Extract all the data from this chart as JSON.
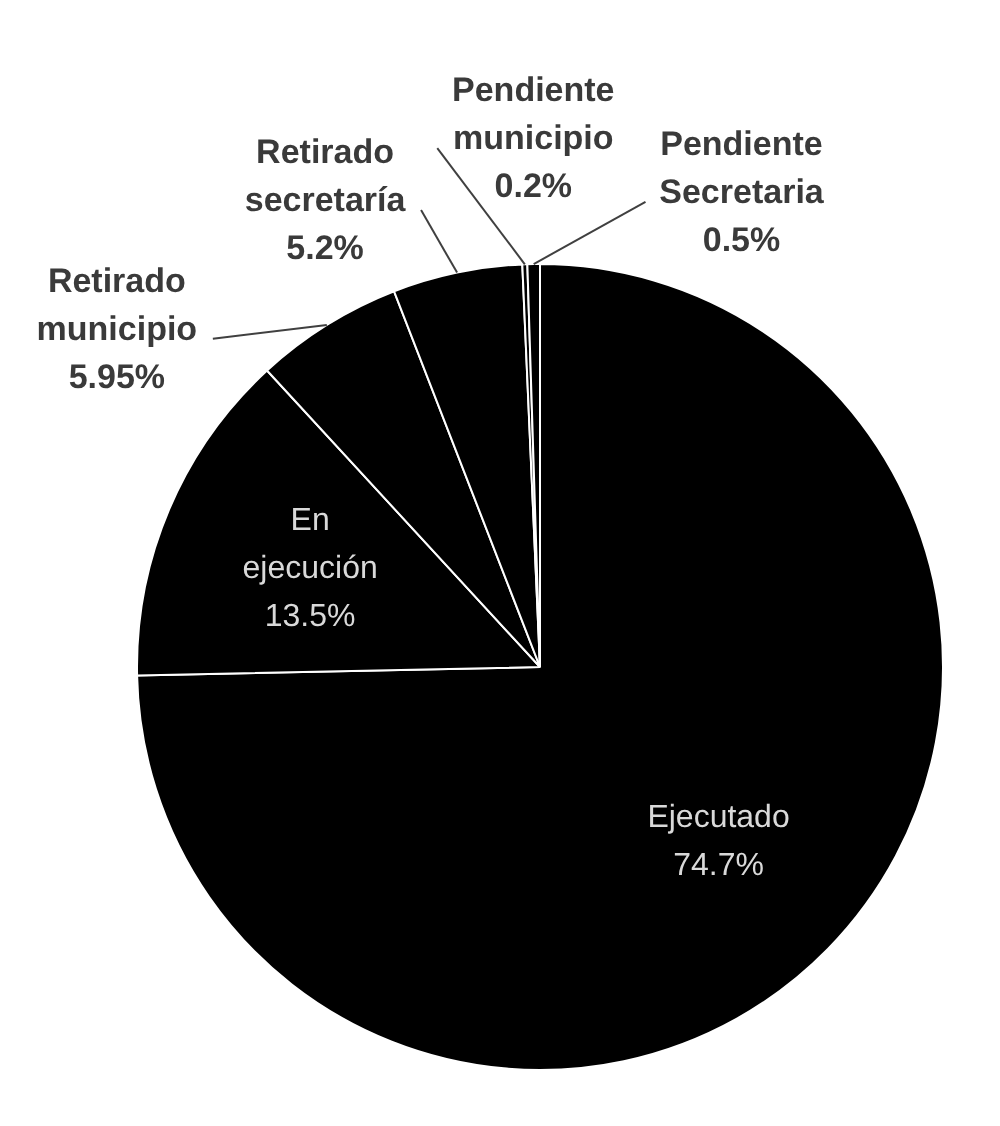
{
  "chart_data": {
    "type": "pie",
    "categories": [
      "Ejecutado",
      "En ejecución",
      "Retirado municipio",
      "Retirado secretaría",
      "Pendiente municipio",
      "Pendiente Secretaria"
    ],
    "values": [
      74.7,
      13.5,
      5.95,
      5.2,
      0.2,
      0.5
    ],
    "colors": [
      "#000000",
      "#000000",
      "#000000",
      "#000000",
      "#000000",
      "#000000"
    ],
    "value_labels": [
      "74.7%",
      "13.5%",
      "5.95%",
      "5.2%",
      "0.2%",
      "0.5%"
    ]
  }
}
